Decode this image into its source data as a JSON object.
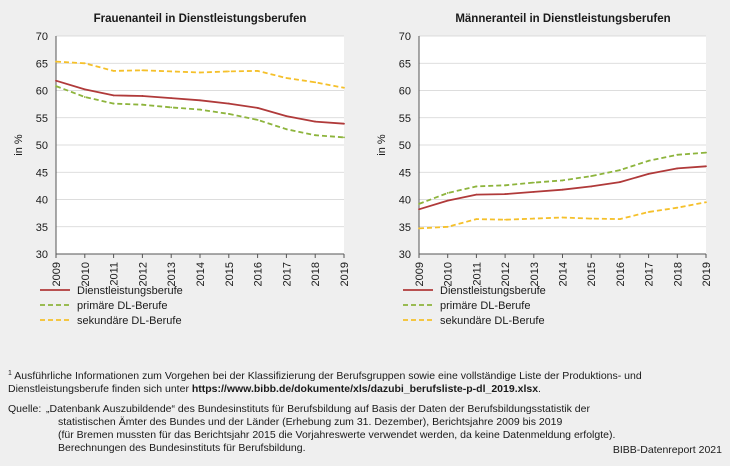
{
  "chart_data": [
    {
      "type": "line",
      "title": "Frauenanteil in Dienstleistungsberufen",
      "xlabel": "",
      "ylabel": "in %",
      "x": [
        2009,
        2010,
        2011,
        2012,
        2013,
        2014,
        2015,
        2016,
        2017,
        2018,
        2019
      ],
      "xlim": [
        2009,
        2019
      ],
      "ylim": [
        30,
        70
      ],
      "yticks": [
        30,
        35,
        40,
        45,
        50,
        55,
        60,
        65,
        70
      ],
      "grid": "horizontal",
      "series": [
        {
          "name": "Dienstleistungsberufe",
          "color": "#b03a3a",
          "dash": "solid",
          "values": [
            61.8,
            60.2,
            59.1,
            59.0,
            58.6,
            58.2,
            57.6,
            56.8,
            55.3,
            54.3,
            53.9
          ]
        },
        {
          "name": "primäre DL-Berufe",
          "color": "#8db43c",
          "dash": "dashed",
          "values": [
            60.8,
            58.8,
            57.6,
            57.4,
            56.9,
            56.5,
            55.7,
            54.6,
            52.9,
            51.8,
            51.4
          ]
        },
        {
          "name": "sekundäre DL-Berufe",
          "color": "#f5c02a",
          "dash": "dashed",
          "values": [
            65.3,
            65.0,
            63.6,
            63.7,
            63.5,
            63.3,
            63.5,
            63.6,
            62.3,
            61.5,
            60.5
          ]
        }
      ]
    },
    {
      "type": "line",
      "title": "Männeranteil in Dienstleistungsberufen",
      "xlabel": "",
      "ylabel": "in %",
      "x": [
        2009,
        2010,
        2011,
        2012,
        2013,
        2014,
        2015,
        2016,
        2017,
        2018,
        2019
      ],
      "xlim": [
        2009,
        2019
      ],
      "ylim": [
        30,
        70
      ],
      "yticks": [
        30,
        35,
        40,
        45,
        50,
        55,
        60,
        65,
        70
      ],
      "grid": "horizontal",
      "series": [
        {
          "name": "Dienstleistungsberufe",
          "color": "#b03a3a",
          "dash": "solid",
          "values": [
            38.2,
            39.8,
            40.9,
            41.0,
            41.4,
            41.8,
            42.4,
            43.2,
            44.7,
            45.7,
            46.1
          ]
        },
        {
          "name": "primäre DL-Berufe",
          "color": "#8db43c",
          "dash": "dashed",
          "values": [
            39.2,
            41.2,
            42.4,
            42.6,
            43.1,
            43.5,
            44.3,
            45.4,
            47.1,
            48.2,
            48.6
          ]
        },
        {
          "name": "sekundäre DL-Berufe",
          "color": "#f5c02a",
          "dash": "dashed",
          "values": [
            34.7,
            35.0,
            36.4,
            36.3,
            36.5,
            36.7,
            36.5,
            36.4,
            37.7,
            38.5,
            39.5
          ]
        }
      ]
    }
  ],
  "footnote": {
    "marker": "1",
    "text": " Ausführliche Informationen zum Vorgehen bei der Klassifizierung der Berufsgruppen sowie eine vollständige Liste der Produktions- und Dienstleistungsberufe finden sich unter ",
    "link": "https://www.bibb.de/dokumente/xls/dazubi_berufsliste-p-dl_2019.xlsx",
    "end": "."
  },
  "source": {
    "label": "Quelle:",
    "lines": [
      "„Datenbank Auszubildende“ des Bundesinstituts für Berufsbildung auf Basis der Daten der Berufsbildungsstatistik der",
      "statistischen Ämter des Bundes und der Länder (Erhebung zum 31. Dezember), Berichtsjahre 2009 bis 2019",
      "(für Bremen mussten für das Berichtsjahr 2015 die Vorjahreswerte verwendet werden, da keine Datenmeldung erfolgte).",
      "Berechnungen des Bundesinstituts für Berufsbildung."
    ]
  },
  "credit": "BIBB-Datenreport 2021"
}
